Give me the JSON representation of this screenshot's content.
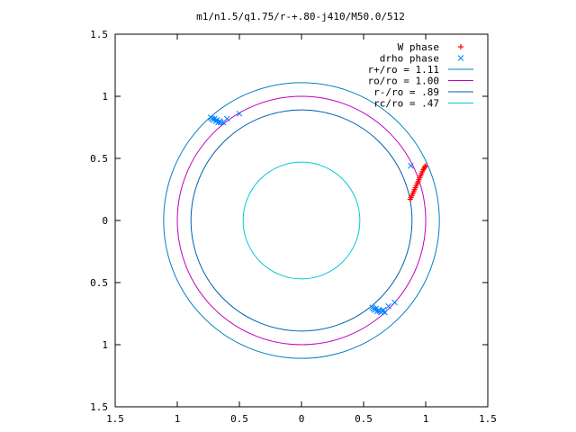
{
  "chart_data": {
    "type": "scatter",
    "title": "m1/n1.5/q1.75/r-+.80-j410/M50.0/512",
    "xlabel": "",
    "ylabel": "",
    "xlim": [
      -1.5,
      1.5
    ],
    "ylim": [
      -1.5,
      1.5
    ],
    "x_ticks": [
      -1.5,
      -1,
      -0.5,
      0,
      0.5,
      1,
      1.5
    ],
    "y_ticks": [
      -1.5,
      -1,
      -0.5,
      0,
      0.5,
      1,
      1.5
    ],
    "x_tick_labels": [
      "1.5",
      "1",
      "0.5",
      "0",
      "0.5",
      "1",
      "1.5"
    ],
    "y_tick_labels": [
      "1.5",
      "1",
      "0.5",
      "0",
      "0.5",
      "1",
      "1.5"
    ],
    "grid": false,
    "legend_position": "top-right",
    "circles": [
      {
        "name": "r+/ro = 1.11",
        "radius": 1.11,
        "color": "#0080c0"
      },
      {
        "name": "ro/ro = 1.00",
        "radius": 1.0,
        "color": "#c000c0"
      },
      {
        "name": "r-/ro = .89",
        "radius": 0.89,
        "color": "#0060b0"
      },
      {
        "name": "rc/ro = .47",
        "radius": 0.47,
        "color": "#00c8d8"
      }
    ],
    "series": [
      {
        "name": "W phase",
        "marker": "+",
        "color": "#ff0000",
        "x": [
          0.875,
          0.882,
          0.889,
          0.896,
          0.903,
          0.91,
          0.917,
          0.924,
          0.931,
          0.938,
          0.945,
          0.952,
          0.959,
          0.966,
          0.973,
          0.98,
          0.987,
          0.994,
          1.0
        ],
        "y": [
          0.17,
          0.185,
          0.2,
          0.216,
          0.232,
          0.248,
          0.264,
          0.28,
          0.296,
          0.312,
          0.328,
          0.344,
          0.36,
          0.376,
          0.392,
          0.408,
          0.42,
          0.432,
          0.44
        ]
      },
      {
        "name": "drho phase",
        "marker": "x",
        "color": "#0080ff",
        "x": [
          -0.73,
          -0.72,
          -0.71,
          -0.7,
          -0.69,
          -0.68,
          -0.67,
          -0.66,
          -0.65,
          -0.63,
          -0.6,
          -0.5,
          0.57,
          0.58,
          0.59,
          0.6,
          0.61,
          0.62,
          0.63,
          0.64,
          0.65,
          0.66,
          0.67,
          0.7,
          0.75,
          0.88
        ],
        "y": [
          0.83,
          0.82,
          0.81,
          0.82,
          0.8,
          0.81,
          0.79,
          0.8,
          0.79,
          0.79,
          0.82,
          0.86,
          -0.7,
          -0.71,
          -0.72,
          -0.71,
          -0.73,
          -0.72,
          -0.73,
          -0.74,
          -0.73,
          -0.72,
          -0.74,
          -0.69,
          -0.66,
          0.44
        ]
      }
    ]
  }
}
